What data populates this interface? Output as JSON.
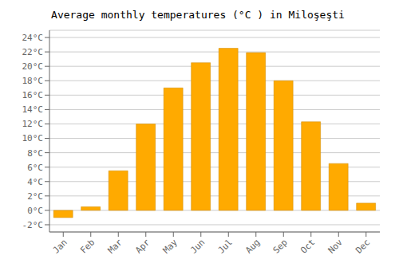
{
  "chart_data": {
    "type": "bar",
    "title": "Average monthly temperatures (°C ) in Miloşeşti",
    "categories": [
      "Jan",
      "Feb",
      "Mar",
      "Apr",
      "May",
      "Jun",
      "Jul",
      "Aug",
      "Sep",
      "Oct",
      "Nov",
      "Dec"
    ],
    "values": [
      -1.0,
      0.5,
      5.5,
      12.0,
      17.0,
      20.5,
      22.5,
      21.9,
      18.0,
      12.3,
      6.5,
      1.0
    ],
    "color": "#FFAA00",
    "ylim": [
      -3,
      25
    ],
    "yticks": [
      {
        "value": -2,
        "label": "-2°C"
      },
      {
        "value": 0,
        "label": "0°C"
      },
      {
        "value": 2,
        "label": "2°C"
      },
      {
        "value": 4,
        "label": "4°C"
      },
      {
        "value": 6,
        "label": "6°C"
      },
      {
        "value": 8,
        "label": "8°C"
      },
      {
        "value": 10,
        "label": "10°C"
      },
      {
        "value": 12,
        "label": "12°C"
      },
      {
        "value": 14,
        "label": "14°C"
      },
      {
        "value": 16,
        "label": "16°C"
      },
      {
        "value": 18,
        "label": "18°C"
      },
      {
        "value": 20,
        "label": "20°C"
      },
      {
        "value": 22,
        "label": "22°C"
      },
      {
        "value": 24,
        "label": "24°C"
      }
    ],
    "grid": true
  }
}
